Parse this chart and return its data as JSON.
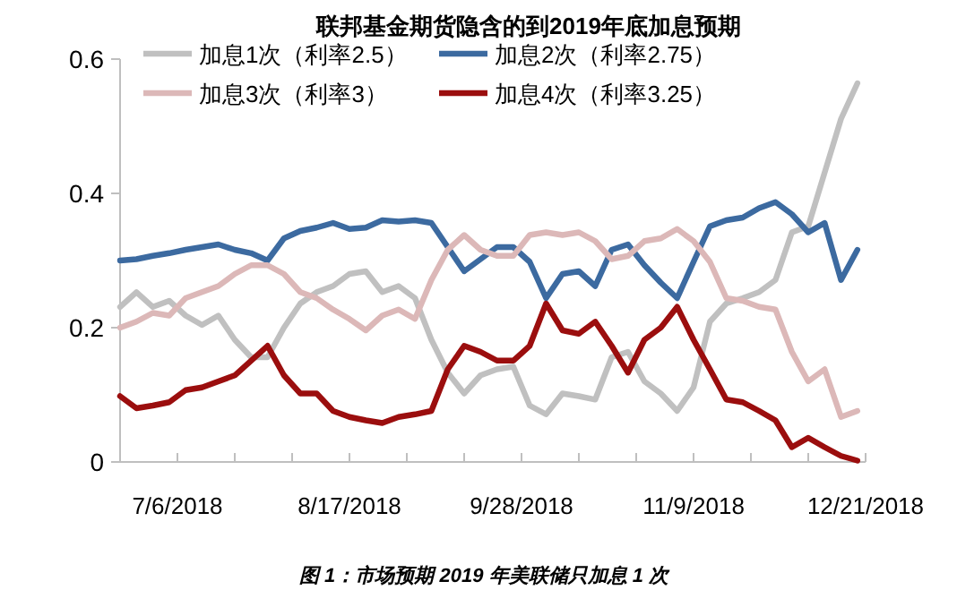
{
  "chart_data": {
    "type": "line",
    "title": "联邦基金期货隐含的到2019年底加息预期",
    "x": [
      "2018-06-22",
      "2018-06-26",
      "2018-06-30",
      "2018-07-04",
      "2018-07-08",
      "2018-07-12",
      "2018-07-16",
      "2018-07-20",
      "2018-07-24",
      "2018-07-28",
      "2018-08-01",
      "2018-08-05",
      "2018-08-09",
      "2018-08-13",
      "2018-08-17",
      "2018-08-21",
      "2018-08-25",
      "2018-08-29",
      "2018-09-02",
      "2018-09-06",
      "2018-09-10",
      "2018-09-14",
      "2018-09-18",
      "2018-09-22",
      "2018-09-26",
      "2018-09-30",
      "2018-10-04",
      "2018-10-08",
      "2018-10-12",
      "2018-10-16",
      "2018-10-20",
      "2018-10-24",
      "2018-10-28",
      "2018-11-01",
      "2018-11-05",
      "2018-11-09",
      "2018-11-13",
      "2018-11-17",
      "2018-11-21",
      "2018-11-25",
      "2018-11-29",
      "2018-12-03",
      "2018-12-07",
      "2018-12-11",
      "2018-12-15",
      "2018-12-19"
    ],
    "series": [
      {
        "name": "加息1次（利率2.5）",
        "color": "#c0c0c0",
        "values": [
          0.231,
          0.253,
          0.231,
          0.24,
          0.218,
          0.204,
          0.218,
          0.182,
          0.156,
          0.156,
          0.2,
          0.236,
          0.253,
          0.262,
          0.28,
          0.284,
          0.253,
          0.262,
          0.244,
          0.182,
          0.133,
          0.102,
          0.129,
          0.138,
          0.142,
          0.084,
          0.071,
          0.102,
          0.098,
          0.093,
          0.156,
          0.164,
          0.12,
          0.102,
          0.076,
          0.111,
          0.209,
          0.236,
          0.244,
          0.253,
          0.271,
          0.342,
          0.351,
          0.431,
          0.511,
          0.564
        ]
      },
      {
        "name": "加息2次（利率2.75）",
        "color": "#3c6aa0",
        "values": [
          0.3,
          0.302,
          0.307,
          0.311,
          0.316,
          0.32,
          0.324,
          0.316,
          0.311,
          0.3,
          0.333,
          0.344,
          0.349,
          0.356,
          0.347,
          0.349,
          0.36,
          0.358,
          0.36,
          0.356,
          0.32,
          0.284,
          0.302,
          0.32,
          0.32,
          0.298,
          0.244,
          0.28,
          0.284,
          0.262,
          0.316,
          0.324,
          0.293,
          0.267,
          0.244,
          0.298,
          0.351,
          0.36,
          0.364,
          0.378,
          0.387,
          0.369,
          0.342,
          0.356,
          0.271,
          0.316
        ]
      },
      {
        "name": "加息3次（利率3）",
        "color": "#dcb8b8",
        "values": [
          0.2,
          0.209,
          0.222,
          0.218,
          0.244,
          0.253,
          0.262,
          0.28,
          0.293,
          0.293,
          0.28,
          0.253,
          0.244,
          0.227,
          0.213,
          0.196,
          0.218,
          0.227,
          0.213,
          0.271,
          0.316,
          0.338,
          0.316,
          0.307,
          0.307,
          0.338,
          0.342,
          0.338,
          0.342,
          0.329,
          0.302,
          0.307,
          0.329,
          0.333,
          0.347,
          0.329,
          0.298,
          0.244,
          0.24,
          0.231,
          0.227,
          0.164,
          0.12,
          0.138,
          0.067,
          0.076
        ]
      },
      {
        "name": "加息4次（利率3.25）",
        "color": "#9b0e0e",
        "values": [
          0.098,
          0.08,
          0.084,
          0.089,
          0.107,
          0.111,
          0.12,
          0.129,
          0.151,
          0.173,
          0.129,
          0.102,
          0.102,
          0.076,
          0.067,
          0.062,
          0.058,
          0.067,
          0.071,
          0.076,
          0.138,
          0.173,
          0.164,
          0.151,
          0.151,
          0.173,
          0.236,
          0.196,
          0.191,
          0.209,
          0.173,
          0.133,
          0.182,
          0.2,
          0.231,
          0.182,
          0.138,
          0.093,
          0.089,
          0.076,
          0.062,
          0.022,
          0.036,
          0.022,
          0.009,
          0.002
        ]
      }
    ],
    "xlim": [
      "2018-06-22",
      "2018-12-21"
    ],
    "xticks": [
      {
        "value": "2018-06-22",
        "label": null
      },
      {
        "value": "2018-07-06",
        "label": "7/6/2018"
      },
      {
        "value": "2018-07-20",
        "label": null
      },
      {
        "value": "2018-08-03",
        "label": null
      },
      {
        "value": "2018-08-17",
        "label": "8/17/2018"
      },
      {
        "value": "2018-08-31",
        "label": null
      },
      {
        "value": "2018-09-14",
        "label": null
      },
      {
        "value": "2018-09-28",
        "label": "9/28/2018"
      },
      {
        "value": "2018-10-12",
        "label": null
      },
      {
        "value": "2018-10-26",
        "label": null
      },
      {
        "value": "2018-11-09",
        "label": "11/9/2018"
      },
      {
        "value": "2018-11-23",
        "label": null
      },
      {
        "value": "2018-12-07",
        "label": null
      },
      {
        "value": "2018-12-21",
        "label": "12/21/2018"
      }
    ],
    "ylim": [
      0,
      0.6
    ],
    "yticks": [
      0,
      0.2,
      0.4,
      0.6
    ],
    "grid": false,
    "legend": "top",
    "line_style": "solid",
    "marker": "none",
    "annotations": [
      "图 1：市场预期 2019 年美联储只加息 1 次"
    ]
  }
}
